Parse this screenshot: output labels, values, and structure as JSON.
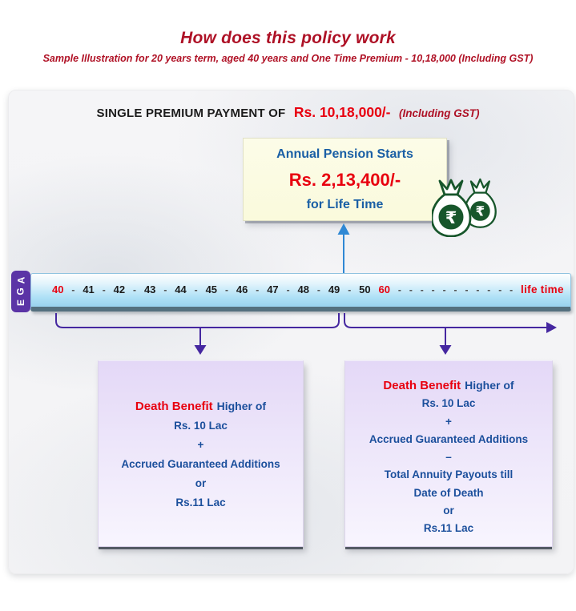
{
  "colors": {
    "title_red": "#AE1126",
    "bright_red": "#E8000F",
    "pension_blue": "#1A5FA5",
    "benefit_blue": "#1B4F9C",
    "bracket_purple": "#4527A0",
    "age_label_purple": "#5B34A6",
    "arrow_blue": "#2F88D4",
    "bag_green": "#17562B",
    "pension_box_bg": "#FBFBDF",
    "death_box_bg": "#E4D8F7",
    "age_bar_blue": "#9AD2EE"
  },
  "header": {
    "title": "How does this policy work",
    "subtitle": "Sample Illustration for 20 years term, aged 40 years and One Time Premium  - 10,18,000 (Including GST)"
  },
  "premium_heading": {
    "prefix": "SINGLE PREMIUM PAYMENT OF",
    "amount": "Rs. 10,18,000/-",
    "suffix": "(Including GST)"
  },
  "pension_box": {
    "line1": "Annual Pension Starts",
    "amount": "Rs. 2,13,400/-",
    "line2": "for Life Time"
  },
  "money_bags": {
    "symbol": "₹"
  },
  "age_axis": {
    "label": "AGE",
    "ticks": [
      {
        "t": "40",
        "red": true
      },
      {
        "t": "-",
        "dash": true
      },
      {
        "t": "41"
      },
      {
        "t": "-",
        "dash": true
      },
      {
        "t": "42"
      },
      {
        "t": "-",
        "dash": true
      },
      {
        "t": "43"
      },
      {
        "t": "-",
        "dash": true
      },
      {
        "t": "44"
      },
      {
        "t": "-",
        "dash": true
      },
      {
        "t": "45"
      },
      {
        "t": "-",
        "dash": true
      },
      {
        "t": "46"
      },
      {
        "t": "-",
        "dash": true
      },
      {
        "t": "47"
      },
      {
        "t": "-",
        "dash": true
      },
      {
        "t": "48"
      },
      {
        "t": "-",
        "dash": true
      },
      {
        "t": "49"
      },
      {
        "t": "-",
        "dash": true
      },
      {
        "t": "50"
      },
      {
        "t": "60",
        "red": true
      },
      {
        "t": "-",
        "dash": true
      },
      {
        "t": "-",
        "dash": true
      },
      {
        "t": "-",
        "dash": true
      },
      {
        "t": "-",
        "dash": true
      },
      {
        "t": "-",
        "dash": true
      },
      {
        "t": "-",
        "dash": true
      },
      {
        "t": "-",
        "dash": true
      },
      {
        "t": "-",
        "dash": true
      },
      {
        "t": "-",
        "dash": true
      },
      {
        "t": "-",
        "dash": true
      },
      {
        "t": "-",
        "dash": true
      },
      {
        "t": "life time",
        "red": true,
        "lifetime": true
      }
    ]
  },
  "death_box_left": {
    "title_highlight": "Death Benefit",
    "title_rest": "Higher of",
    "lines": [
      "Rs. 10 Lac",
      "+",
      "Accrued Guaranteed Additions",
      "or",
      "Rs.11 Lac"
    ]
  },
  "death_box_right": {
    "title_highlight": "Death Benefit",
    "title_rest": "Higher of",
    "lines": [
      "Rs. 10 Lac",
      "+",
      "Accrued Guaranteed Additions",
      "–",
      "Total Annuity Payouts till",
      "Date of Death",
      "or",
      "Rs.11 Lac"
    ]
  }
}
